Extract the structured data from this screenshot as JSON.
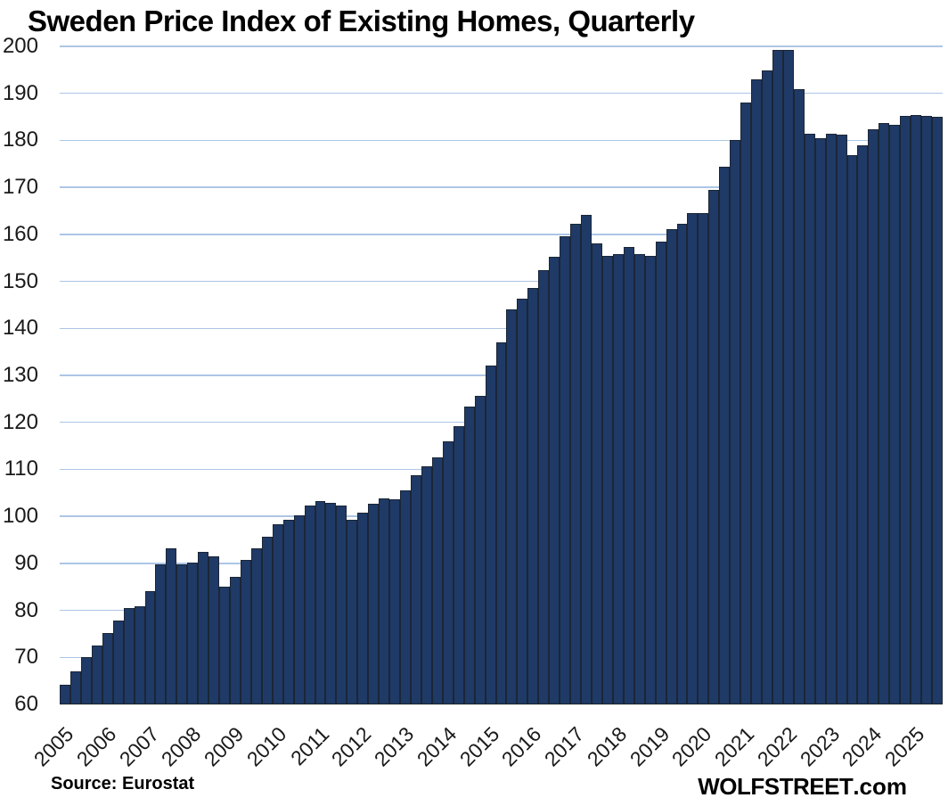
{
  "title": "Sweden Price Index of Existing Homes, Quarterly",
  "footer": {
    "source": "Source: Eurostat",
    "watermark_main": "WOLFSTREET",
    "watermark_suffix": ".com"
  },
  "chart_data": {
    "type": "bar",
    "title": "Sweden Price Index of Existing Homes, Quarterly",
    "categories": [
      "2005Q1",
      "2005Q2",
      "2005Q3",
      "2005Q4",
      "2006Q1",
      "2006Q2",
      "2006Q3",
      "2006Q4",
      "2007Q1",
      "2007Q2",
      "2007Q3",
      "2007Q4",
      "2008Q1",
      "2008Q2",
      "2008Q3",
      "2008Q4",
      "2009Q1",
      "2009Q2",
      "2009Q3",
      "2009Q4",
      "2010Q1",
      "2010Q2",
      "2010Q3",
      "2010Q4",
      "2011Q1",
      "2011Q2",
      "2011Q3",
      "2011Q4",
      "2012Q1",
      "2012Q2",
      "2012Q3",
      "2012Q4",
      "2013Q1",
      "2013Q2",
      "2013Q3",
      "2013Q4",
      "2014Q1",
      "2014Q2",
      "2014Q3",
      "2014Q4",
      "2015Q1",
      "2015Q2",
      "2015Q3",
      "2015Q4",
      "2016Q1",
      "2016Q2",
      "2016Q3",
      "2016Q4",
      "2017Q1",
      "2017Q2",
      "2017Q3",
      "2017Q4",
      "2018Q1",
      "2018Q2",
      "2018Q3",
      "2018Q4",
      "2019Q1",
      "2019Q2",
      "2019Q3",
      "2019Q4",
      "2020Q1",
      "2020Q2",
      "2020Q3",
      "2020Q4",
      "2021Q1",
      "2021Q2",
      "2021Q3",
      "2021Q4",
      "2022Q1",
      "2022Q2",
      "2022Q3",
      "2022Q4",
      "2023Q1",
      "2023Q2",
      "2023Q3",
      "2023Q4",
      "2024Q1",
      "2024Q2",
      "2024Q3",
      "2024Q4",
      "2025Q1",
      "2025Q2",
      "2025Q3"
    ],
    "values": [
      64.2,
      67.0,
      70.0,
      72.5,
      75.2,
      77.8,
      80.4,
      80.8,
      84.1,
      89.8,
      93.2,
      89.8,
      90.2,
      92.4,
      91.5,
      85.0,
      87.1,
      90.7,
      93.2,
      95.7,
      98.3,
      99.2,
      100.3,
      102.3,
      103.3,
      102.9,
      102.3,
      99.2,
      100.8,
      102.7,
      103.8,
      103.6,
      105.5,
      108.8,
      110.7,
      112.5,
      116.0,
      119.2,
      123.4,
      125.7,
      132.0,
      137.0,
      144.0,
      146.3,
      148.5,
      152.4,
      155.2,
      159.5,
      162.3,
      164.2,
      158.0,
      155.4,
      155.8,
      157.3,
      155.8,
      155.4,
      158.5,
      161.1,
      162.3,
      164.6,
      164.6,
      169.5,
      174.4,
      180.1,
      188.1,
      193.0,
      194.9,
      199.3,
      199.3,
      190.9,
      181.4,
      180.4,
      181.5,
      181.2,
      176.9,
      179.0,
      182.3,
      183.6,
      183.3,
      185.2,
      185.3,
      185.2,
      185.0
    ],
    "xlabel": "",
    "ylabel": "",
    "xtick_labels": [
      "2005",
      "2006",
      "2007",
      "2008",
      "2009",
      "2010",
      "2011",
      "2012",
      "2013",
      "2014",
      "2015",
      "2016",
      "2017",
      "2018",
      "2019",
      "2020",
      "2021",
      "2022",
      "2023",
      "2024",
      "2025"
    ],
    "yticks": [
      60,
      70,
      80,
      90,
      100,
      110,
      120,
      130,
      140,
      150,
      160,
      170,
      180,
      190,
      200
    ],
    "ylim": [
      60,
      200
    ],
    "grid": true,
    "legend": "none",
    "source": "Source: Eurostat",
    "watermark": "WOLFSTREET.com",
    "colors": {
      "bar_fill": "#1f3a66",
      "bar_border": "#1b2636",
      "gridline": "#adc6e5",
      "axis_baseline": "#d9d9d9",
      "text": "#000000"
    }
  }
}
